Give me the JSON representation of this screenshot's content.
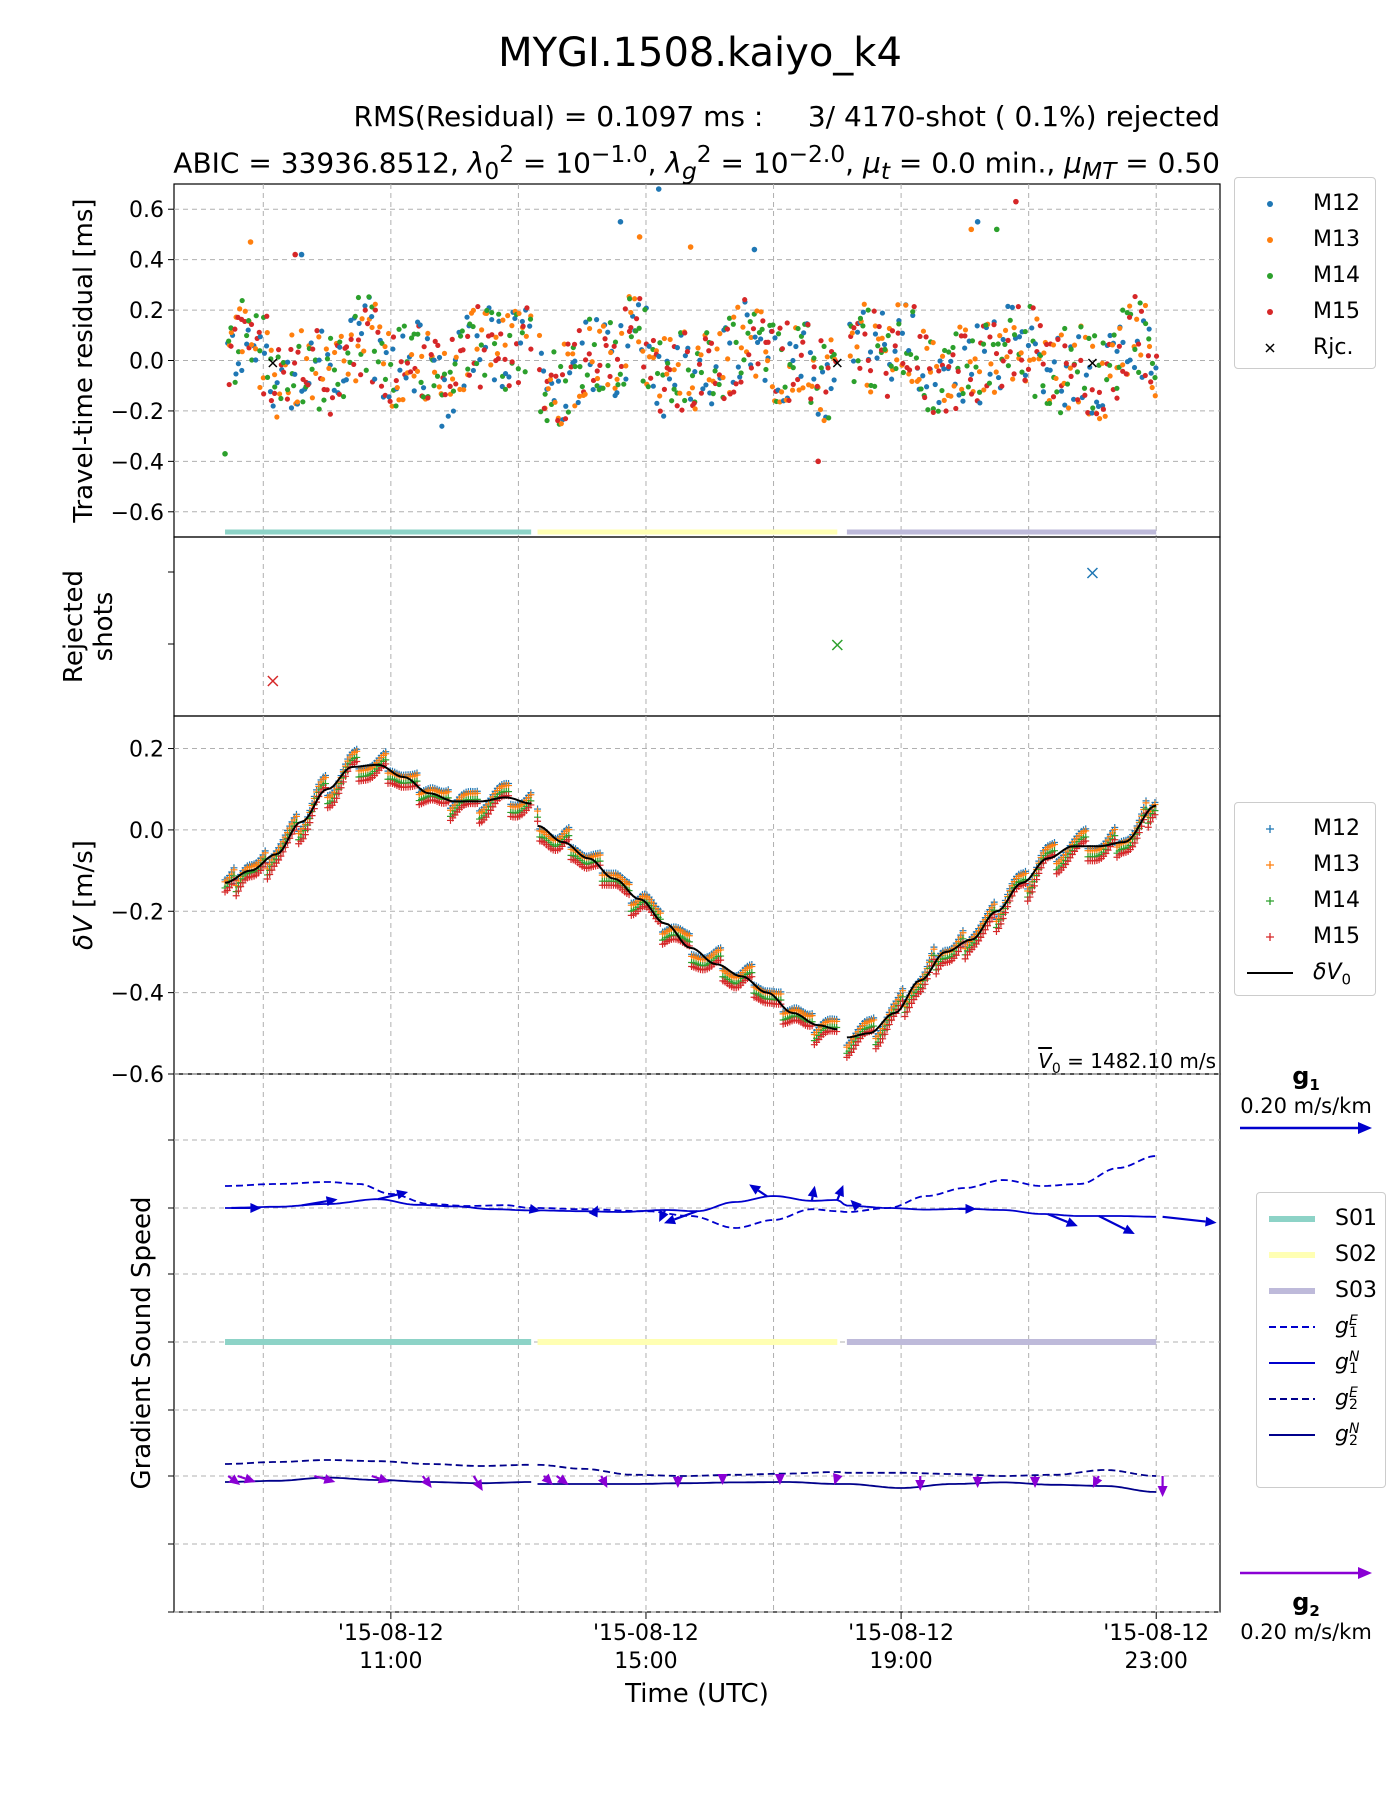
{
  "titles": {
    "main": "MYGI.1508.kaiyo_k4",
    "line1": "RMS(Residual) = 0.1097 ms :     3/ 4170-shot ( 0.1%) rejected",
    "line2_html": "ABIC =   33936.8512, <i>λ</i><sub>0</sub><sup>2</sup> = 10<sup>−1.0</sup>, <i>λ</i><sub><i>g</i></sub><sup>2</sup> = 10<sup>−2.0</sup>, <i>μ</i><sub><i>t</i></sub> = 0.0 min., <i>μ</i><sub><i>MT</i></sub> = 0.50"
  },
  "colors": {
    "M12": "#1f77b4",
    "M13": "#ff7f0e",
    "M14": "#2ca02c",
    "M15": "#d62728",
    "S01": "#8dd3c7",
    "S02": "#ffffb3",
    "S03": "#bebada",
    "g1": "#0000cd",
    "g2": "#8a00d4",
    "g2line": "#00008b"
  },
  "chart_data": [
    {
      "type": "scatter",
      "name": "residual-panel",
      "ylabel": "Travel-time residual [ms]",
      "ylim": [
        -0.7,
        0.7
      ],
      "yticks": [
        0.6,
        0.4,
        0.2,
        0.0,
        -0.2,
        -0.4,
        -0.6
      ],
      "ytick_labels": [
        "0.6",
        "0.4",
        "0.2",
        "0.0",
        "−0.2",
        "−0.4",
        "−0.6"
      ],
      "series": [
        {
          "name": "M12",
          "marker": "dot"
        },
        {
          "name": "M13",
          "marker": "dot"
        },
        {
          "name": "M14",
          "marker": "dot"
        },
        {
          "name": "M15",
          "marker": "dot"
        }
      ],
      "outliers": [
        {
          "t": 14.6,
          "y": 0.55,
          "s": "M12"
        },
        {
          "t": 15.2,
          "y": 0.68,
          "s": "M12"
        },
        {
          "t": 16.7,
          "y": 0.44,
          "s": "M12"
        },
        {
          "t": 20.2,
          "y": 0.55,
          "s": "M12"
        },
        {
          "t": 9.6,
          "y": 0.42,
          "s": "M12"
        },
        {
          "t": 8.8,
          "y": 0.47,
          "s": "M13"
        },
        {
          "t": 14.9,
          "y": 0.49,
          "s": "M13"
        },
        {
          "t": 15.7,
          "y": 0.45,
          "s": "M13"
        },
        {
          "t": 20.1,
          "y": 0.52,
          "s": "M13"
        },
        {
          "t": 20.5,
          "y": 0.52,
          "s": "M14"
        },
        {
          "t": 20.8,
          "y": 0.63,
          "s": "M15"
        },
        {
          "t": 9.5,
          "y": 0.42,
          "s": "M15"
        },
        {
          "t": 17.7,
          "y": -0.4,
          "s": "M15"
        },
        {
          "t": 8.4,
          "y": -0.37,
          "s": "M14"
        }
      ],
      "rejected": [
        {
          "t": 9.15,
          "y": -0.01
        },
        {
          "t": 18.0,
          "y": -0.01
        },
        {
          "t": 22.0,
          "y": -0.01
        }
      ],
      "segments": [
        {
          "name": "S01",
          "t0": 8.4,
          "t1": 13.2
        },
        {
          "name": "S02",
          "t0": 13.3,
          "t1": 18.0
        },
        {
          "name": "S03",
          "t0": 18.15,
          "t1": 23.0
        }
      ]
    },
    {
      "type": "scatter",
      "name": "rejected-panel",
      "ylabel": "Rejected shots",
      "points": [
        {
          "t": 22.0,
          "s": "M12"
        },
        {
          "t": 18.0,
          "s": "M14"
        },
        {
          "t": 9.15,
          "s": "M15"
        }
      ]
    },
    {
      "type": "line",
      "name": "dv-panel",
      "ylabel": "δV [m/s]",
      "ylim": [
        -0.6,
        0.28
      ],
      "yticks": [
        0.2,
        0.0,
        -0.2,
        -0.4,
        -0.6
      ],
      "ytick_labels": [
        "0.2",
        "0.0",
        "−0.2",
        "−0.4",
        "−0.6"
      ],
      "v0_text": "1482.10 m/s",
      "v0_symbol": "V",
      "smooth_dv0": {
        "t": [
          8.4,
          8.8,
          9.2,
          9.6,
          10.0,
          10.4,
          10.8,
          11.2,
          11.6,
          12.0,
          12.4,
          12.8,
          13.2
        ],
        "y": [
          -0.13,
          -0.1,
          -0.06,
          0.02,
          0.1,
          0.155,
          0.16,
          0.13,
          0.09,
          0.07,
          0.07,
          0.08,
          0.065
        ]
      },
      "smooth_dv0_b": {
        "t": [
          13.3,
          13.7,
          14.1,
          14.5,
          14.9,
          15.3,
          15.7,
          16.1,
          16.5,
          16.9,
          17.3,
          17.7,
          18.0
        ],
        "y": [
          0.01,
          -0.03,
          -0.07,
          -0.12,
          -0.17,
          -0.23,
          -0.29,
          -0.33,
          -0.36,
          -0.4,
          -0.45,
          -0.48,
          -0.49
        ]
      },
      "smooth_dv0_c": {
        "t": [
          18.15,
          18.5,
          18.9,
          19.3,
          19.7,
          20.1,
          20.5,
          20.9,
          21.3,
          21.7,
          22.1,
          22.5,
          23.0
        ],
        "y": [
          -0.51,
          -0.5,
          -0.45,
          -0.37,
          -0.3,
          -0.27,
          -0.2,
          -0.13,
          -0.07,
          -0.04,
          -0.04,
          -0.03,
          0.06
        ]
      },
      "series": [
        {
          "name": "M12",
          "offset": 0.01
        },
        {
          "name": "M13",
          "offset": 0.005
        },
        {
          "name": "M14",
          "offset": -0.01
        },
        {
          "name": "M15",
          "offset": -0.02
        }
      ]
    },
    {
      "type": "line",
      "name": "gradient-panel",
      "ylabel": "Gradient Sound Speed",
      "g1_east": {
        "t": [
          8.4,
          9.2,
          10.0,
          10.5,
          11.0,
          11.6,
          12.2,
          12.8,
          13.2,
          13.3,
          14.0,
          15.0,
          15.7,
          16.4,
          17.0,
          17.6,
          18.0,
          18.15,
          18.8,
          19.4,
          20.0,
          20.6,
          21.2,
          21.8,
          22.4,
          23.0
        ],
        "y": [
          0.055,
          0.06,
          0.065,
          0.06,
          0.035,
          0.01,
          0.005,
          0.007,
          0.0,
          0.0,
          -0.003,
          -0.008,
          -0.02,
          -0.05,
          -0.03,
          -0.003,
          -0.008,
          -0.01,
          0.0,
          0.03,
          0.05,
          0.07,
          0.055,
          0.06,
          0.1,
          0.13
        ]
      },
      "g1_north": {
        "t": [
          8.4,
          9.2,
          10.0,
          10.8,
          11.4,
          12.0,
          12.6,
          13.2,
          13.3,
          14.0,
          14.6,
          15.3,
          15.8,
          16.4,
          17.0,
          17.6,
          18.0,
          18.15,
          18.8,
          19.4,
          20.0,
          20.6,
          21.2,
          21.8,
          22.4,
          23.0
        ],
        "y": [
          0.0,
          0.003,
          0.01,
          0.022,
          0.008,
          0.004,
          -0.003,
          -0.006,
          -0.006,
          -0.008,
          -0.01,
          -0.005,
          -0.008,
          0.015,
          0.03,
          0.018,
          0.02,
          0.006,
          0.0,
          -0.004,
          -0.002,
          -0.005,
          -0.015,
          -0.02,
          -0.02,
          -0.022
        ]
      },
      "g2_east": {
        "t": [
          8.4,
          9.2,
          10.0,
          10.8,
          11.6,
          12.4,
          13.2,
          13.3,
          14.0,
          14.8,
          15.6,
          16.4,
          17.2,
          18.0,
          18.15,
          19.0,
          19.8,
          20.6,
          21.4,
          22.2,
          23.0
        ],
        "y": [
          0.03,
          0.035,
          0.04,
          0.037,
          0.03,
          0.025,
          0.028,
          0.028,
          0.018,
          0.003,
          0.0,
          0.003,
          0.006,
          0.01,
          0.008,
          0.008,
          0.005,
          0.0,
          0.003,
          0.015,
          0.0
        ]
      },
      "g2_north": {
        "t": [
          8.4,
          9.2,
          10.0,
          10.8,
          11.6,
          12.4,
          13.2,
          13.3,
          14.0,
          14.8,
          15.6,
          16.4,
          17.2,
          18.0,
          18.15,
          19.0,
          19.8,
          20.6,
          21.4,
          22.2,
          23.0
        ],
        "y": [
          -0.015,
          -0.012,
          -0.004,
          -0.01,
          -0.015,
          -0.018,
          -0.015,
          -0.02,
          -0.02,
          -0.02,
          -0.018,
          -0.016,
          -0.015,
          -0.02,
          -0.02,
          -0.03,
          -0.02,
          -0.016,
          -0.022,
          -0.025,
          -0.04
        ]
      },
      "g1_arrows": [
        {
          "t": 8.5,
          "dx": 0.5,
          "dy": 0.0
        },
        {
          "t": 9.6,
          "dx": 0.6,
          "dy": 0.1
        },
        {
          "t": 10.8,
          "dx": 0.5,
          "dy": 0.12
        },
        {
          "t": 13.3,
          "dx": 0.05,
          "dy": -0.01
        },
        {
          "t": 14.2,
          "dx": 0.05,
          "dy": 0.1
        },
        {
          "t": 15.3,
          "dx": -0.1,
          "dy": -0.2
        },
        {
          "t": 15.8,
          "dx": -0.55,
          "dy": -0.2
        },
        {
          "t": 16.9,
          "dx": -0.3,
          "dy": 0.2
        },
        {
          "t": 17.6,
          "dx": 0.05,
          "dy": 0.25
        },
        {
          "t": 18.0,
          "dx": 0.1,
          "dy": 0.25
        },
        {
          "t": 18.3,
          "dx": -0.1,
          "dy": 0.1
        },
        {
          "t": 19.9,
          "dx": 0.3,
          "dy": 0.0
        },
        {
          "t": 21.3,
          "dx": 0.5,
          "dy": -0.2
        },
        {
          "t": 22.1,
          "dx": 0.6,
          "dy": -0.3
        },
        {
          "t": 23.1,
          "dx": 0.9,
          "dy": -0.1
        }
      ],
      "g2_arrows": [
        {
          "t": 8.45,
          "dx": 0.2,
          "dy": -0.15
        },
        {
          "t": 8.6,
          "dx": 0.3,
          "dy": -0.1
        },
        {
          "t": 9.8,
          "dx": 0.35,
          "dy": -0.1
        },
        {
          "t": 10.7,
          "dx": 0.3,
          "dy": -0.1
        },
        {
          "t": 11.5,
          "dx": 0.15,
          "dy": -0.2
        },
        {
          "t": 12.3,
          "dx": 0.15,
          "dy": -0.25
        },
        {
          "t": 13.4,
          "dx": 0.15,
          "dy": -0.15
        },
        {
          "t": 13.6,
          "dx": 0.2,
          "dy": -0.15
        },
        {
          "t": 14.3,
          "dx": 0.1,
          "dy": -0.2
        },
        {
          "t": 15.5,
          "dx": 0.0,
          "dy": -0.2
        },
        {
          "t": 16.2,
          "dx": 0.0,
          "dy": -0.15
        },
        {
          "t": 17.1,
          "dx": 0.0,
          "dy": -0.15
        },
        {
          "t": 18.0,
          "dx": -0.05,
          "dy": -0.15
        },
        {
          "t": 19.3,
          "dx": 0.0,
          "dy": -0.25
        },
        {
          "t": 20.2,
          "dx": 0.0,
          "dy": -0.2
        },
        {
          "t": 21.1,
          "dx": 0.0,
          "dy": -0.2
        },
        {
          "t": 22.1,
          "dx": -0.1,
          "dy": -0.2
        },
        {
          "t": 23.1,
          "dx": 0.0,
          "dy": -0.35
        }
      ],
      "segments": [
        {
          "name": "S01",
          "t0": 8.4,
          "t1": 13.2
        },
        {
          "name": "S02",
          "t0": 13.3,
          "t1": 18.0
        },
        {
          "name": "S03",
          "t0": 18.15,
          "t1": 23.0
        }
      ]
    }
  ],
  "x_axis": {
    "label": "Time (UTC)",
    "ticks": [
      {
        "t": 11,
        "date": "'15-08-12",
        "time": "11:00"
      },
      {
        "t": 15,
        "date": "'15-08-12",
        "time": "15:00"
      },
      {
        "t": 19,
        "date": "'15-08-12",
        "time": "19:00"
      },
      {
        "t": 23,
        "date": "'15-08-12",
        "time": "23:00"
      }
    ],
    "grid_at": [
      9,
      13,
      17,
      21
    ],
    "range": [
      7.6,
      24.0
    ]
  },
  "legends": {
    "residual": [
      "M12",
      "M13",
      "M14",
      "M15",
      "Rjc."
    ],
    "dv": [
      "M12",
      "M13",
      "M14",
      "M15"
    ],
    "dv_line": "δV",
    "dv_line_sub": "0",
    "gradient_segments": [
      "S01",
      "S02",
      "S03"
    ],
    "gradient_lines": [
      {
        "base": "g",
        "sub": "1",
        "sup": "E",
        "style": "dashed",
        "color": "g1"
      },
      {
        "base": "g",
        "sub": "1",
        "sup": "N",
        "style": "solid",
        "color": "g1"
      },
      {
        "base": "g",
        "sub": "2",
        "sup": "E",
        "style": "dashed",
        "color": "g2line"
      },
      {
        "base": "g",
        "sub": "2",
        "sup": "N",
        "style": "solid",
        "color": "g2line"
      }
    ]
  },
  "arrow_keys": {
    "g1": {
      "name": "g",
      "sub": "1",
      "scale": "0.20 m/s/km"
    },
    "g2": {
      "name": "g",
      "sub": "2",
      "scale": "0.20 m/s/km"
    }
  }
}
